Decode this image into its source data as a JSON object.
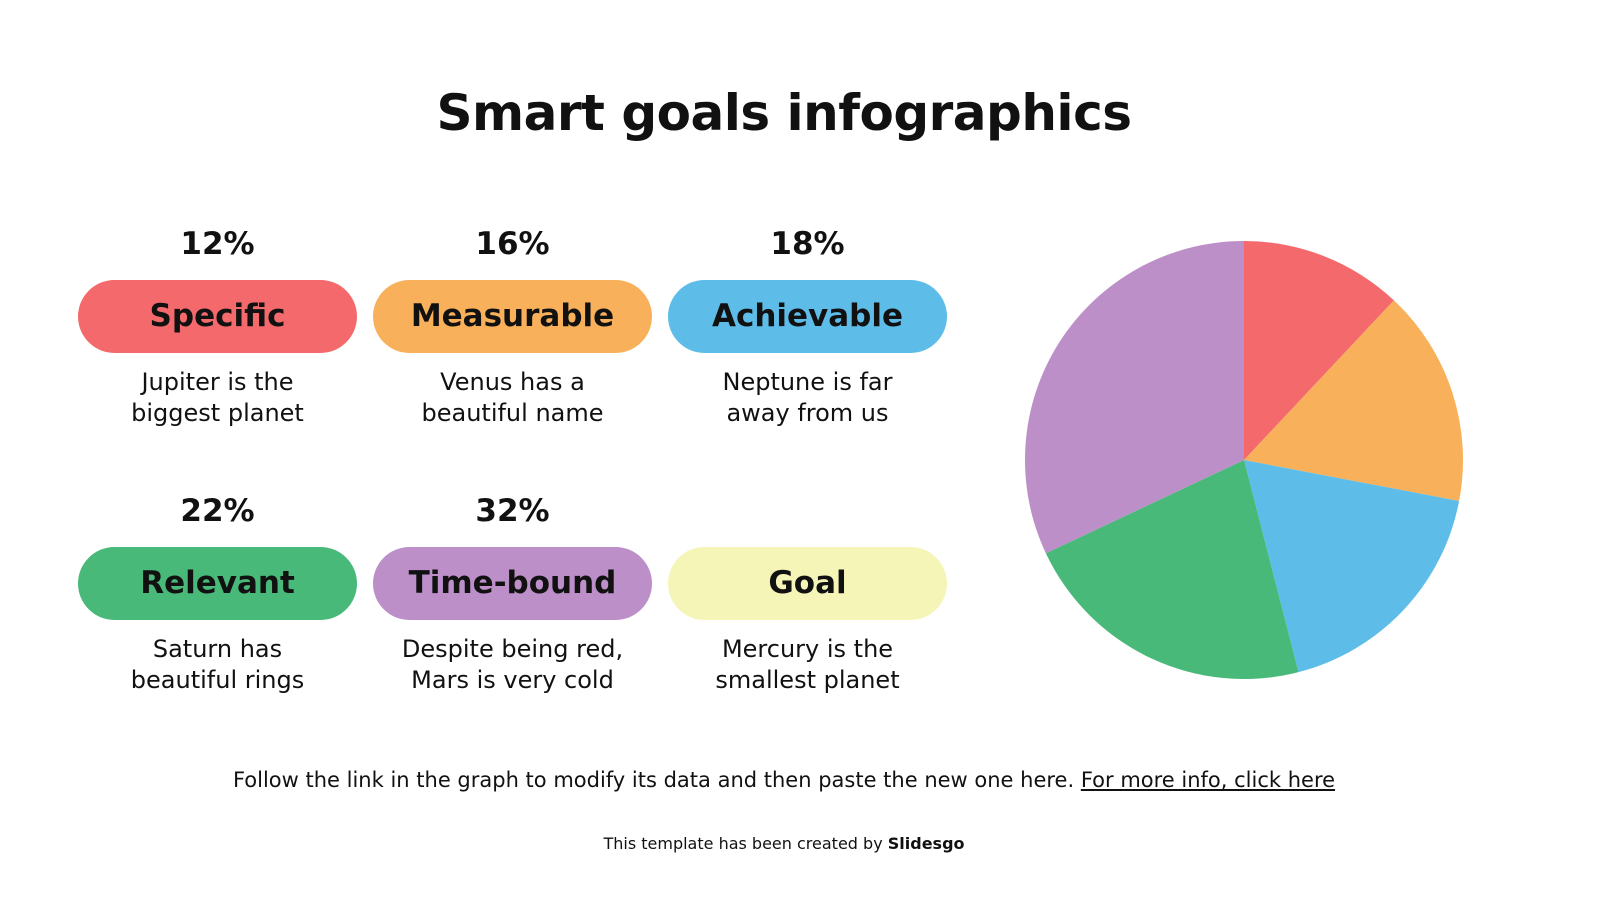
{
  "title": "Smart goals infographics",
  "cards": [
    {
      "percent": "12%",
      "label": "Specific",
      "desc1": "Jupiter is the",
      "desc2": "biggest planet",
      "color": "#F46A6C"
    },
    {
      "percent": "16%",
      "label": "Measurable",
      "desc1": "Venus has a",
      "desc2": "beautiful name",
      "color": "#F9B05A"
    },
    {
      "percent": "18%",
      "label": "Achievable",
      "desc1": "Neptune is far",
      "desc2": "away from us",
      "color": "#5DBDE8"
    },
    {
      "percent": "22%",
      "label": "Relevant",
      "desc1": "Saturn has",
      "desc2": "beautiful rings",
      "color": "#48B978"
    },
    {
      "percent": "32%",
      "label": "Time-bound",
      "desc1": "Despite being red,",
      "desc2": "Mars is very cold",
      "color": "#BC8FC9"
    },
    {
      "percent": "",
      "label": "Goal",
      "desc1": "Mercury is the",
      "desc2": "smallest planet",
      "color": "#F5F5B8"
    }
  ],
  "note": {
    "text": "Follow the link in the graph to modify its data and then paste the new one here. ",
    "link": "For more info, click here"
  },
  "credit": {
    "text": "This template has been created by ",
    "brand": "Slidesgo"
  },
  "chart_data": {
    "type": "pie",
    "categories": [
      "Specific",
      "Measurable",
      "Achievable",
      "Relevant",
      "Time-bound"
    ],
    "values": [
      12,
      16,
      18,
      22,
      32
    ],
    "colors": [
      "#F46A6C",
      "#F9B05A",
      "#5DBDE8",
      "#48B978",
      "#BC8FC9"
    ],
    "start": "top, clockwise"
  }
}
